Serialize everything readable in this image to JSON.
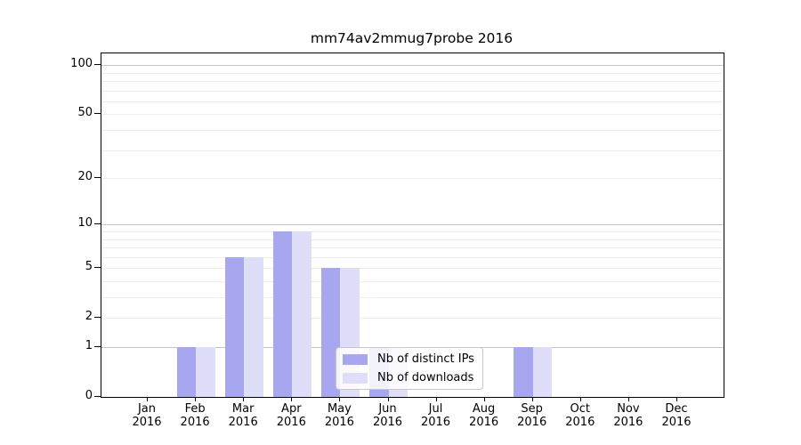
{
  "chart_data": {
    "type": "bar",
    "title": "mm74av2mmug7probe 2016",
    "categories": [
      "Jan",
      "Feb",
      "Mar",
      "Apr",
      "May",
      "Jun",
      "Jul",
      "Aug",
      "Sep",
      "Oct",
      "Nov",
      "Dec"
    ],
    "year_label": "2016",
    "series": [
      {
        "name": "Nb of distinct IPs",
        "color": "#a7a7f0",
        "values": [
          0,
          1,
          6,
          9,
          5,
          1,
          0,
          0,
          1,
          0,
          0,
          0
        ]
      },
      {
        "name": "Nb of downloads",
        "color": "#dedef8",
        "values": [
          0,
          1,
          6,
          9,
          5,
          1,
          0,
          0,
          1,
          0,
          0,
          0
        ]
      }
    ],
    "ytick_labels": [
      "100",
      "50",
      "20",
      "10",
      "5",
      "2",
      "1",
      "0"
    ],
    "ytick_values": [
      100,
      50,
      20,
      10,
      5,
      2,
      1,
      0
    ],
    "major_grid_values": [
      1,
      10,
      100
    ],
    "minor_grid_values": [
      2,
      3,
      4,
      5,
      6,
      7,
      8,
      9,
      20,
      30,
      40,
      50,
      60,
      70,
      80,
      90
    ],
    "xlabel": "",
    "ylabel": "",
    "ylim": [
      0,
      118
    ],
    "scale": "log1p",
    "grid": true,
    "legend_position": "lower-center",
    "colors": {
      "major_grid": "#c4c4c4",
      "minor_grid": "#ededed",
      "spine": "#000000",
      "background": "#ffffff"
    }
  }
}
